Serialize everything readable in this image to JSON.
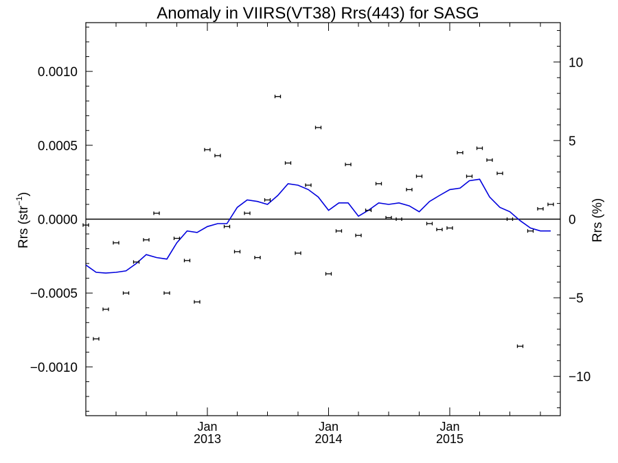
{
  "chart_data": {
    "type": "scatter",
    "title": "Anomaly in VIIRS(VT38) Rrs(443) for SASG",
    "ylabel_left": "Rrs (str",
    "ylabel_left_sup": "−1",
    "ylabel_left_close": ")",
    "ylabel_right": "Rrs (%)",
    "x_axis": {
      "range": [
        "2012-01-01",
        "2015-11-30"
      ],
      "major_ticks": [
        {
          "date": "2013-01-01",
          "month": "Jan",
          "year": "2013"
        },
        {
          "date": "2014-01-01",
          "month": "Jan",
          "year": "2014"
        },
        {
          "date": "2015-01-01",
          "month": "Jan",
          "year": "2015"
        }
      ]
    },
    "y_left": {
      "range": [
        -0.00133,
        0.00133
      ],
      "ticks": [
        {
          "value": -0.001,
          "label": "−0.0010"
        },
        {
          "value": -0.0005,
          "label": "−0.0005"
        },
        {
          "value": 0,
          "label": "0.0000"
        },
        {
          "value": 0.0005,
          "label": "0.0005"
        },
        {
          "value": 0.001,
          "label": "0.0010"
        }
      ]
    },
    "y_right": {
      "range": [
        -12.5,
        12.5
      ],
      "ticks": [
        {
          "value": -10,
          "label": "−10"
        },
        {
          "value": -5,
          "label": "−5"
        },
        {
          "value": 0,
          "label": "0"
        },
        {
          "value": 5,
          "label": "5"
        },
        {
          "value": 10,
          "label": "10"
        }
      ]
    },
    "series": [
      {
        "kind": "points_with_error_bars",
        "color": "#000000",
        "points": [
          {
            "x": "2012-01-01",
            "y": -4e-05
          },
          {
            "x": "2012-02-01",
            "y": -0.00081
          },
          {
            "x": "2012-03-01",
            "y": -0.00061
          },
          {
            "x": "2012-04-01",
            "y": -0.00016
          },
          {
            "x": "2012-05-01",
            "y": -0.0005
          },
          {
            "x": "2012-06-01",
            "y": -0.00029
          },
          {
            "x": "2012-07-01",
            "y": -0.00014
          },
          {
            "x": "2012-08-01",
            "y": 4e-05
          },
          {
            "x": "2012-09-01",
            "y": -0.0005
          },
          {
            "x": "2012-10-01",
            "y": -0.00013
          },
          {
            "x": "2012-11-01",
            "y": -0.00028
          },
          {
            "x": "2012-12-01",
            "y": -0.00056
          },
          {
            "x": "2013-01-01",
            "y": 0.00047
          },
          {
            "x": "2013-02-01",
            "y": 0.00043
          },
          {
            "x": "2013-03-01",
            "y": -5e-05
          },
          {
            "x": "2013-04-01",
            "y": -0.00022
          },
          {
            "x": "2013-05-01",
            "y": 4e-05
          },
          {
            "x": "2013-06-01",
            "y": -0.00026
          },
          {
            "x": "2013-07-01",
            "y": 0.00013
          },
          {
            "x": "2013-08-01",
            "y": 0.00083
          },
          {
            "x": "2013-09-01",
            "y": 0.00038
          },
          {
            "x": "2013-10-01",
            "y": -0.00023
          },
          {
            "x": "2013-11-01",
            "y": 0.00023
          },
          {
            "x": "2013-12-01",
            "y": 0.00062
          },
          {
            "x": "2014-01-01",
            "y": -0.00037
          },
          {
            "x": "2014-02-01",
            "y": -8e-05
          },
          {
            "x": "2014-03-01",
            "y": 0.00037
          },
          {
            "x": "2014-04-01",
            "y": -0.00011
          },
          {
            "x": "2014-05-01",
            "y": 6e-05
          },
          {
            "x": "2014-06-01",
            "y": 0.00024
          },
          {
            "x": "2014-07-01",
            "y": 1e-05
          },
          {
            "x": "2014-08-01",
            "y": 0.0
          },
          {
            "x": "2014-09-01",
            "y": 0.0002
          },
          {
            "x": "2014-10-01",
            "y": 0.00029
          },
          {
            "x": "2014-11-01",
            "y": -3e-05
          },
          {
            "x": "2014-12-01",
            "y": -7e-05
          },
          {
            "x": "2015-01-01",
            "y": -6e-05
          },
          {
            "x": "2015-02-01",
            "y": 0.00045
          },
          {
            "x": "2015-03-01",
            "y": 0.00029
          },
          {
            "x": "2015-04-01",
            "y": 0.00048
          },
          {
            "x": "2015-05-01",
            "y": 0.0004
          },
          {
            "x": "2015-06-01",
            "y": 0.00031
          },
          {
            "x": "2015-07-01",
            "y": 0.0
          },
          {
            "x": "2015-08-01",
            "y": -0.00086
          },
          {
            "x": "2015-09-01",
            "y": -8e-05
          },
          {
            "x": "2015-10-01",
            "y": 7e-05
          },
          {
            "x": "2015-11-01",
            "y": 0.0001
          }
        ]
      },
      {
        "kind": "line",
        "color": "#0000dd",
        "points": [
          {
            "x": "2012-01-01",
            "y": -0.00031
          },
          {
            "x": "2012-02-01",
            "y": -0.00036
          },
          {
            "x": "2012-03-01",
            "y": -0.000365
          },
          {
            "x": "2012-04-01",
            "y": -0.00036
          },
          {
            "x": "2012-05-01",
            "y": -0.00035
          },
          {
            "x": "2012-06-01",
            "y": -0.0003
          },
          {
            "x": "2012-07-01",
            "y": -0.00024
          },
          {
            "x": "2012-08-01",
            "y": -0.00026
          },
          {
            "x": "2012-09-01",
            "y": -0.00027
          },
          {
            "x": "2012-10-01",
            "y": -0.00016
          },
          {
            "x": "2012-11-01",
            "y": -8e-05
          },
          {
            "x": "2012-12-01",
            "y": -9e-05
          },
          {
            "x": "2013-01-01",
            "y": -5e-05
          },
          {
            "x": "2013-02-01",
            "y": -3e-05
          },
          {
            "x": "2013-03-01",
            "y": -3e-05
          },
          {
            "x": "2013-04-01",
            "y": 8e-05
          },
          {
            "x": "2013-05-01",
            "y": 0.00013
          },
          {
            "x": "2013-06-01",
            "y": 0.00012
          },
          {
            "x": "2013-07-01",
            "y": 0.0001
          },
          {
            "x": "2013-08-01",
            "y": 0.00016
          },
          {
            "x": "2013-09-01",
            "y": 0.00024
          },
          {
            "x": "2013-10-01",
            "y": 0.00023
          },
          {
            "x": "2013-11-01",
            "y": 0.0002
          },
          {
            "x": "2013-12-01",
            "y": 0.00015
          },
          {
            "x": "2014-01-01",
            "y": 6e-05
          },
          {
            "x": "2014-02-01",
            "y": 0.00011
          },
          {
            "x": "2014-03-01",
            "y": 0.00011
          },
          {
            "x": "2014-04-01",
            "y": 2e-05
          },
          {
            "x": "2014-05-01",
            "y": 6e-05
          },
          {
            "x": "2014-06-01",
            "y": 0.00011
          },
          {
            "x": "2014-07-01",
            "y": 0.0001
          },
          {
            "x": "2014-08-01",
            "y": 0.00011
          },
          {
            "x": "2014-09-01",
            "y": 9e-05
          },
          {
            "x": "2014-10-01",
            "y": 5e-05
          },
          {
            "x": "2014-11-01",
            "y": 0.00012
          },
          {
            "x": "2014-12-01",
            "y": 0.00016
          },
          {
            "x": "2015-01-01",
            "y": 0.0002
          },
          {
            "x": "2015-02-01",
            "y": 0.00021
          },
          {
            "x": "2015-03-01",
            "y": 0.00026
          },
          {
            "x": "2015-04-01",
            "y": 0.00027
          },
          {
            "x": "2015-05-01",
            "y": 0.00015
          },
          {
            "x": "2015-06-01",
            "y": 8e-05
          },
          {
            "x": "2015-07-01",
            "y": 5e-05
          },
          {
            "x": "2015-08-01",
            "y": -1e-05
          },
          {
            "x": "2015-09-01",
            "y": -6e-05
          },
          {
            "x": "2015-10-01",
            "y": -8e-05
          },
          {
            "x": "2015-11-01",
            "y": -8e-05
          }
        ]
      }
    ],
    "zero_line": 0,
    "grid": false,
    "legend": "none"
  }
}
